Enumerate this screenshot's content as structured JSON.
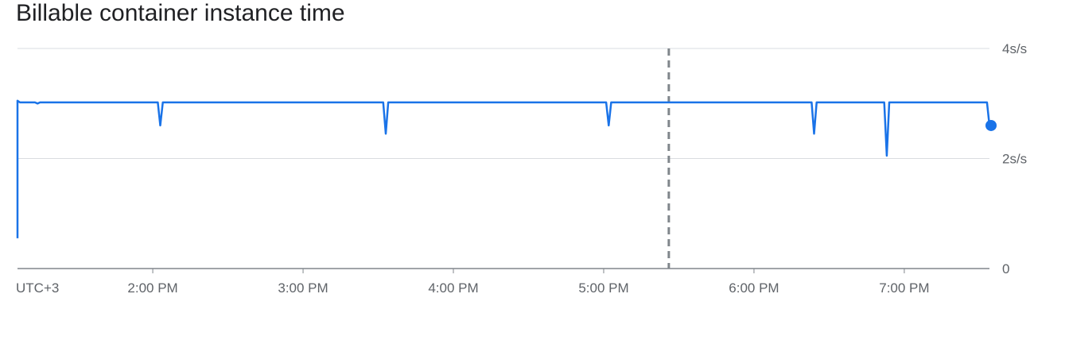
{
  "title": "Billable container instance time",
  "chart_data": {
    "type": "line",
    "title": "Billable container instance time",
    "xlabel": "",
    "ylabel": "",
    "timezone_label": "UTC+3",
    "x_tick_labels": [
      "2:00 PM",
      "3:00 PM",
      "4:00 PM",
      "5:00 PM",
      "6:00 PM",
      "7:00 PM"
    ],
    "y_tick_labels": [
      "0",
      "2s/s",
      "4s/s"
    ],
    "y_ticks": [
      0,
      2,
      4
    ],
    "ylim": [
      0,
      4
    ],
    "xlim": [
      "13:06",
      "19:34"
    ],
    "y_axis_position": "right",
    "grid": true,
    "series_color": "#1a73e8",
    "marker_color": "#80868b",
    "marker_time": "17:26",
    "series": [
      {
        "x": [
          "13:06",
          "13:06",
          "13:07",
          "13:13",
          "13:14",
          "13:15",
          "14:02",
          "14:03",
          "14:04",
          "15:32",
          "15:33",
          "15:34",
          "17:01",
          "17:02",
          "17:03",
          "17:27",
          "18:23",
          "18:24",
          "18:25",
          "18:52",
          "18:53",
          "18:54",
          "19:33",
          "19:34"
        ],
        "y": [
          0.55,
          3.05,
          3.02,
          3.02,
          3.0,
          3.02,
          3.02,
          2.6,
          3.02,
          3.02,
          2.45,
          3.02,
          3.02,
          2.6,
          3.02,
          3.02,
          3.02,
          2.45,
          3.02,
          3.02,
          2.05,
          3.02,
          3.02,
          2.6
        ]
      }
    ]
  }
}
